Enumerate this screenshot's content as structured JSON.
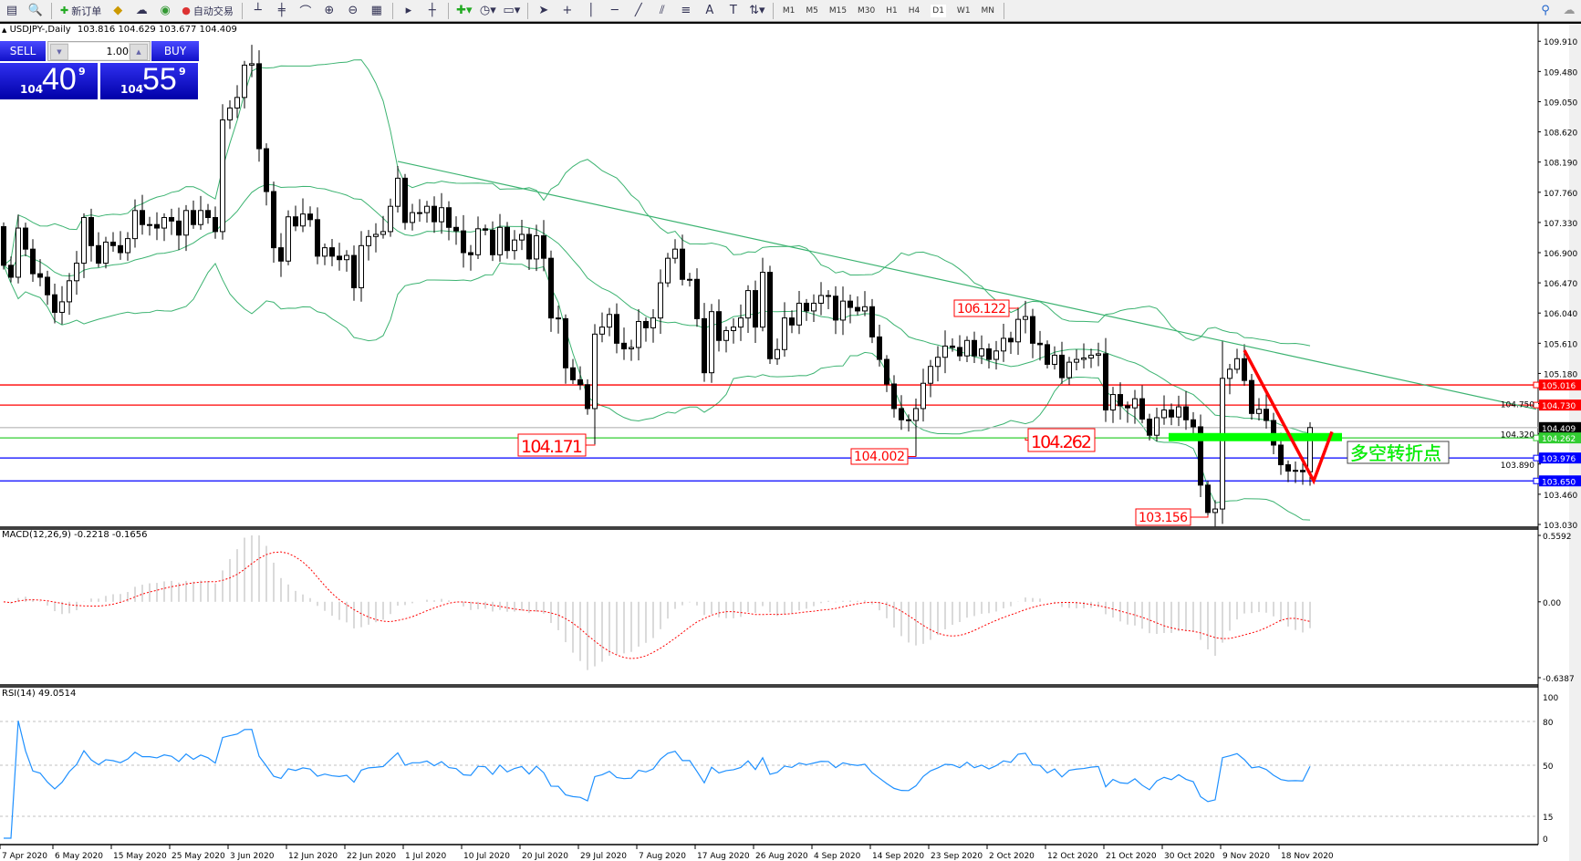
{
  "toolbar": {
    "new_order": "新订单",
    "auto_trade": "自动交易",
    "timeframes": [
      "M1",
      "M5",
      "M15",
      "M30",
      "H1",
      "H4",
      "D1",
      "W1",
      "MN"
    ],
    "active_timeframe": "D1"
  },
  "chart_header": {
    "symbol": "USDJPY-,Daily",
    "ohlc": "103.816 104.629 103.677 104.409"
  },
  "trade_panel": {
    "sell_label": "SELL",
    "buy_label": "BUY",
    "lots": "1.00",
    "sell_price": {
      "big": "104",
      "main": "40",
      "sup": "9"
    },
    "buy_price": {
      "big": "104",
      "main": "55",
      "sup": "9"
    }
  },
  "colors": {
    "bands": "#3cb371",
    "resistance": "#ff0000",
    "support": "#0000ff",
    "pivot": "#32cd32",
    "bid": "#c0c0c0",
    "rsi": "#1e90ff",
    "macd_signal": "#ff0000",
    "macd_hist": "#c0c0c0",
    "highlight_bar": "#00ff00"
  },
  "chart_data": {
    "type": "candlestick",
    "symbol": "USDJPY",
    "timeframe": "Daily",
    "ylim": [
      103.03,
      109.91
    ],
    "price_ticks": [
      "109.910",
      "109.480",
      "109.050",
      "108.620",
      "108.190",
      "107.760",
      "107.330",
      "106.900",
      "106.470",
      "106.040",
      "105.610",
      "105.180",
      "104.750",
      "104.320",
      "103.890",
      "103.460",
      "103.030"
    ],
    "date_labels": [
      "7 Apr 2020",
      "6 May 2020",
      "15 May 2020",
      "25 May 2020",
      "3 Jun 2020",
      "12 Jun 2020",
      "22 Jun 2020",
      "1 Jul 2020",
      "10 Jul 2020",
      "20 Jul 2020",
      "29 Jul 2020",
      "7 Aug 2020",
      "17 Aug 2020",
      "26 Aug 2020",
      "4 Sep 2020",
      "14 Sep 2020",
      "23 Sep 2020",
      "2 Oct 2020",
      "12 Oct 2020",
      "21 Oct 2020",
      "30 Oct 2020",
      "9 Nov 2020",
      "18 Nov 2020"
    ],
    "first_open": 107.27,
    "close": [
      106.72,
      106.55,
      107.25,
      106.95,
      106.6,
      106.55,
      106.3,
      106.05,
      106.2,
      106.5,
      106.75,
      107.4,
      107.0,
      106.75,
      107.05,
      107.0,
      106.9,
      107.1,
      107.5,
      107.3,
      107.3,
      107.25,
      107.4,
      107.35,
      107.15,
      107.5,
      107.3,
      107.5,
      107.4,
      107.2,
      108.79,
      108.96,
      109.11,
      109.57,
      109.59,
      108.38,
      107.77,
      106.97,
      106.78,
      107.41,
      107.28,
      107.45,
      107.37,
      106.85,
      106.97,
      106.85,
      106.8,
      106.86,
      106.4,
      107.0,
      107.13,
      107.16,
      107.2,
      107.56,
      107.96,
      107.33,
      107.47,
      107.47,
      107.56,
      107.34,
      107.54,
      107.26,
      107.21,
      106.9,
      106.87,
      107.24,
      107.22,
      106.87,
      107.26,
      106.93,
      107.08,
      107.16,
      106.81,
      107.14,
      106.82,
      105.97,
      105.96,
      105.26,
      105.09,
      105.02,
      104.68,
      105.74,
      105.84,
      106.02,
      105.61,
      105.53,
      105.55,
      105.92,
      105.83,
      105.97,
      106.47,
      106.82,
      106.95,
      106.52,
      106.52,
      105.96,
      105.19,
      106.06,
      105.65,
      105.79,
      105.84,
      105.97,
      106.36,
      105.84,
      106.62,
      105.39,
      105.52,
      105.97,
      105.87,
      106.18,
      106.07,
      106.18,
      106.29,
      106.28,
      105.94,
      106.21,
      106.12,
      106.07,
      106.13,
      105.7,
      105.38,
      105.03,
      104.68,
      104.52,
      104.51,
      104.68,
      105.04,
      105.28,
      105.41,
      105.57,
      105.55,
      105.43,
      105.65,
      105.43,
      105.53,
      105.38,
      105.5,
      105.68,
      105.63,
      105.95,
      105.99,
      105.61,
      105.59,
      105.31,
      105.44,
      105.12,
      105.34,
      105.38,
      105.4,
      105.44,
      105.46,
      104.66,
      104.88,
      104.72,
      104.69,
      104.82,
      104.53,
      104.3,
      104.55,
      104.66,
      104.56,
      104.705,
      104.52,
      104.42,
      103.59,
      103.2,
      103.25,
      105.11,
      105.24,
      105.39,
      105.08,
      104.61,
      104.67,
      104.51,
      104.16,
      103.88,
      103.79,
      103.8,
      103.78,
      104.409
    ],
    "extremes": [
      {
        "bar": 34,
        "high": 109.86
      },
      {
        "bar": 81,
        "low": 104.171
      },
      {
        "bar": 125,
        "low": 104.002
      },
      {
        "bar": 139,
        "high": 106.122
      },
      {
        "bar": 165,
        "low": 103.156
      },
      {
        "bar": 167,
        "high": 105.65
      }
    ],
    "annotations": [
      {
        "text": "106.122",
        "bar": 139,
        "price": 106.122
      },
      {
        "text": "104.171",
        "bar": 81,
        "price": 104.171
      },
      {
        "text": "104.002",
        "bar": 125,
        "price": 104.002
      },
      {
        "text": "104.262",
        "bar": 140,
        "price": 104.262
      },
      {
        "text": "103.156",
        "bar": 165,
        "price": 103.156
      }
    ],
    "horizontal_lines": [
      {
        "price": 105.016,
        "label": "105.016",
        "role": "resistance"
      },
      {
        "price": 104.73,
        "label": "104.730",
        "role": "resistance"
      },
      {
        "price": 104.409,
        "label": "104.409",
        "role": "bid"
      },
      {
        "price": 104.262,
        "label": "104.262",
        "role": "pivot"
      },
      {
        "price": 103.976,
        "label": "103.976",
        "role": "support"
      },
      {
        "price": 103.65,
        "label": "103.650",
        "role": "support"
      }
    ],
    "trendline": {
      "from": [
        54,
        108.2
      ],
      "to": [
        210,
        104.67
      ]
    },
    "highlight_zone": {
      "from_bar": 160,
      "to_bar": 183,
      "price": 104.28
    },
    "arrow_path": [
      [
        170,
        105.51
      ],
      [
        179.5,
        103.65
      ],
      [
        182,
        104.35
      ]
    ],
    "pivot_text": "多空转折点",
    "bollinger": {
      "period": 20,
      "deviation": 2
    },
    "macd": {
      "label": "MACD(12,26,9) -0.2218 -0.1656",
      "fast": 12,
      "slow": 26,
      "signal": 9,
      "ylim": [
        -0.6387,
        0.5592
      ],
      "ticks": [
        "0.5592",
        "0.00",
        "-0.6387"
      ]
    },
    "rsi": {
      "label": "RSI(14) 49.0514",
      "period": 14,
      "levels": [
        80,
        50,
        15
      ],
      "ticks": [
        "100",
        "80",
        "50",
        "15",
        "0"
      ]
    }
  }
}
